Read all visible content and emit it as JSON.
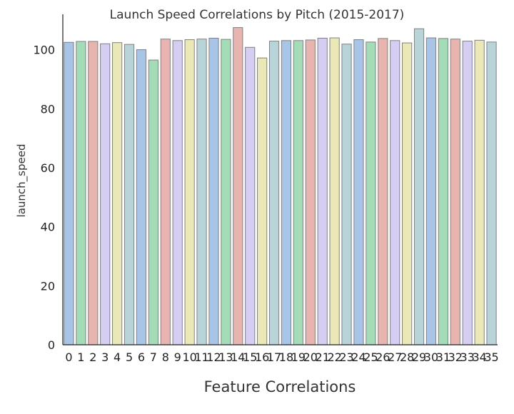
{
  "chart_data": {
    "type": "bar",
    "title": "Launch Speed Correlations by Pitch (2015-2017)",
    "xlabel": "Feature Correlations",
    "ylabel": "launch_speed",
    "ylim": [
      0,
      112
    ],
    "yticks": [
      0,
      20,
      40,
      60,
      80,
      100
    ],
    "grid": false,
    "categories": [
      "0",
      "1",
      "2",
      "3",
      "4",
      "5",
      "6",
      "7",
      "8",
      "9",
      "10",
      "11",
      "12",
      "13",
      "14",
      "15",
      "16",
      "17",
      "18",
      "19",
      "20",
      "21",
      "22",
      "23",
      "24",
      "25",
      "26",
      "27",
      "28",
      "29",
      "30",
      "31",
      "32",
      "33",
      "34",
      "35"
    ],
    "values": [
      102.5,
      102.8,
      102.8,
      102.0,
      102.4,
      101.8,
      100.0,
      96.5,
      103.6,
      103.1,
      103.4,
      103.6,
      103.9,
      103.5,
      107.5,
      100.8,
      97.2,
      102.9,
      103.1,
      103.1,
      103.3,
      103.9,
      104.0,
      101.9,
      103.4,
      102.6,
      103.8,
      103.1,
      102.3,
      107.1,
      104.0,
      103.8,
      103.6,
      102.9,
      103.2,
      102.6
    ],
    "palette": [
      "#a8c4e6",
      "#a4dcb8",
      "#e8b4b0",
      "#d5cdf2",
      "#eae8b6",
      "#b8d4d8"
    ]
  }
}
